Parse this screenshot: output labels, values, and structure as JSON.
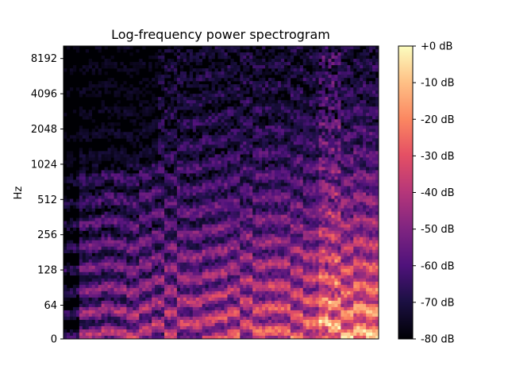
{
  "chart_data": {
    "type": "heatmap",
    "title": "Log-frequency power spectrogram",
    "ylabel": "Hz",
    "xlabel": "",
    "y_scale": "log",
    "y_ticks": [
      {
        "value": 0,
        "label": "0"
      },
      {
        "value": 64,
        "label": "64"
      },
      {
        "value": 128,
        "label": "128"
      },
      {
        "value": 256,
        "label": "256"
      },
      {
        "value": 512,
        "label": "512"
      },
      {
        "value": 1024,
        "label": "1024"
      },
      {
        "value": 2048,
        "label": "2048"
      },
      {
        "value": 4096,
        "label": "4096"
      },
      {
        "value": 8192,
        "label": "8192"
      }
    ],
    "colorbar": {
      "unit": "dB",
      "range": [
        -80,
        0
      ],
      "colormap": "magma",
      "ticks": [
        "+0 dB",
        "-10 dB",
        "-20 dB",
        "-30 dB",
        "-40 dB",
        "-50 dB",
        "-60 dB",
        "-70 dB",
        "-80 dB"
      ]
    },
    "grid": false
  }
}
